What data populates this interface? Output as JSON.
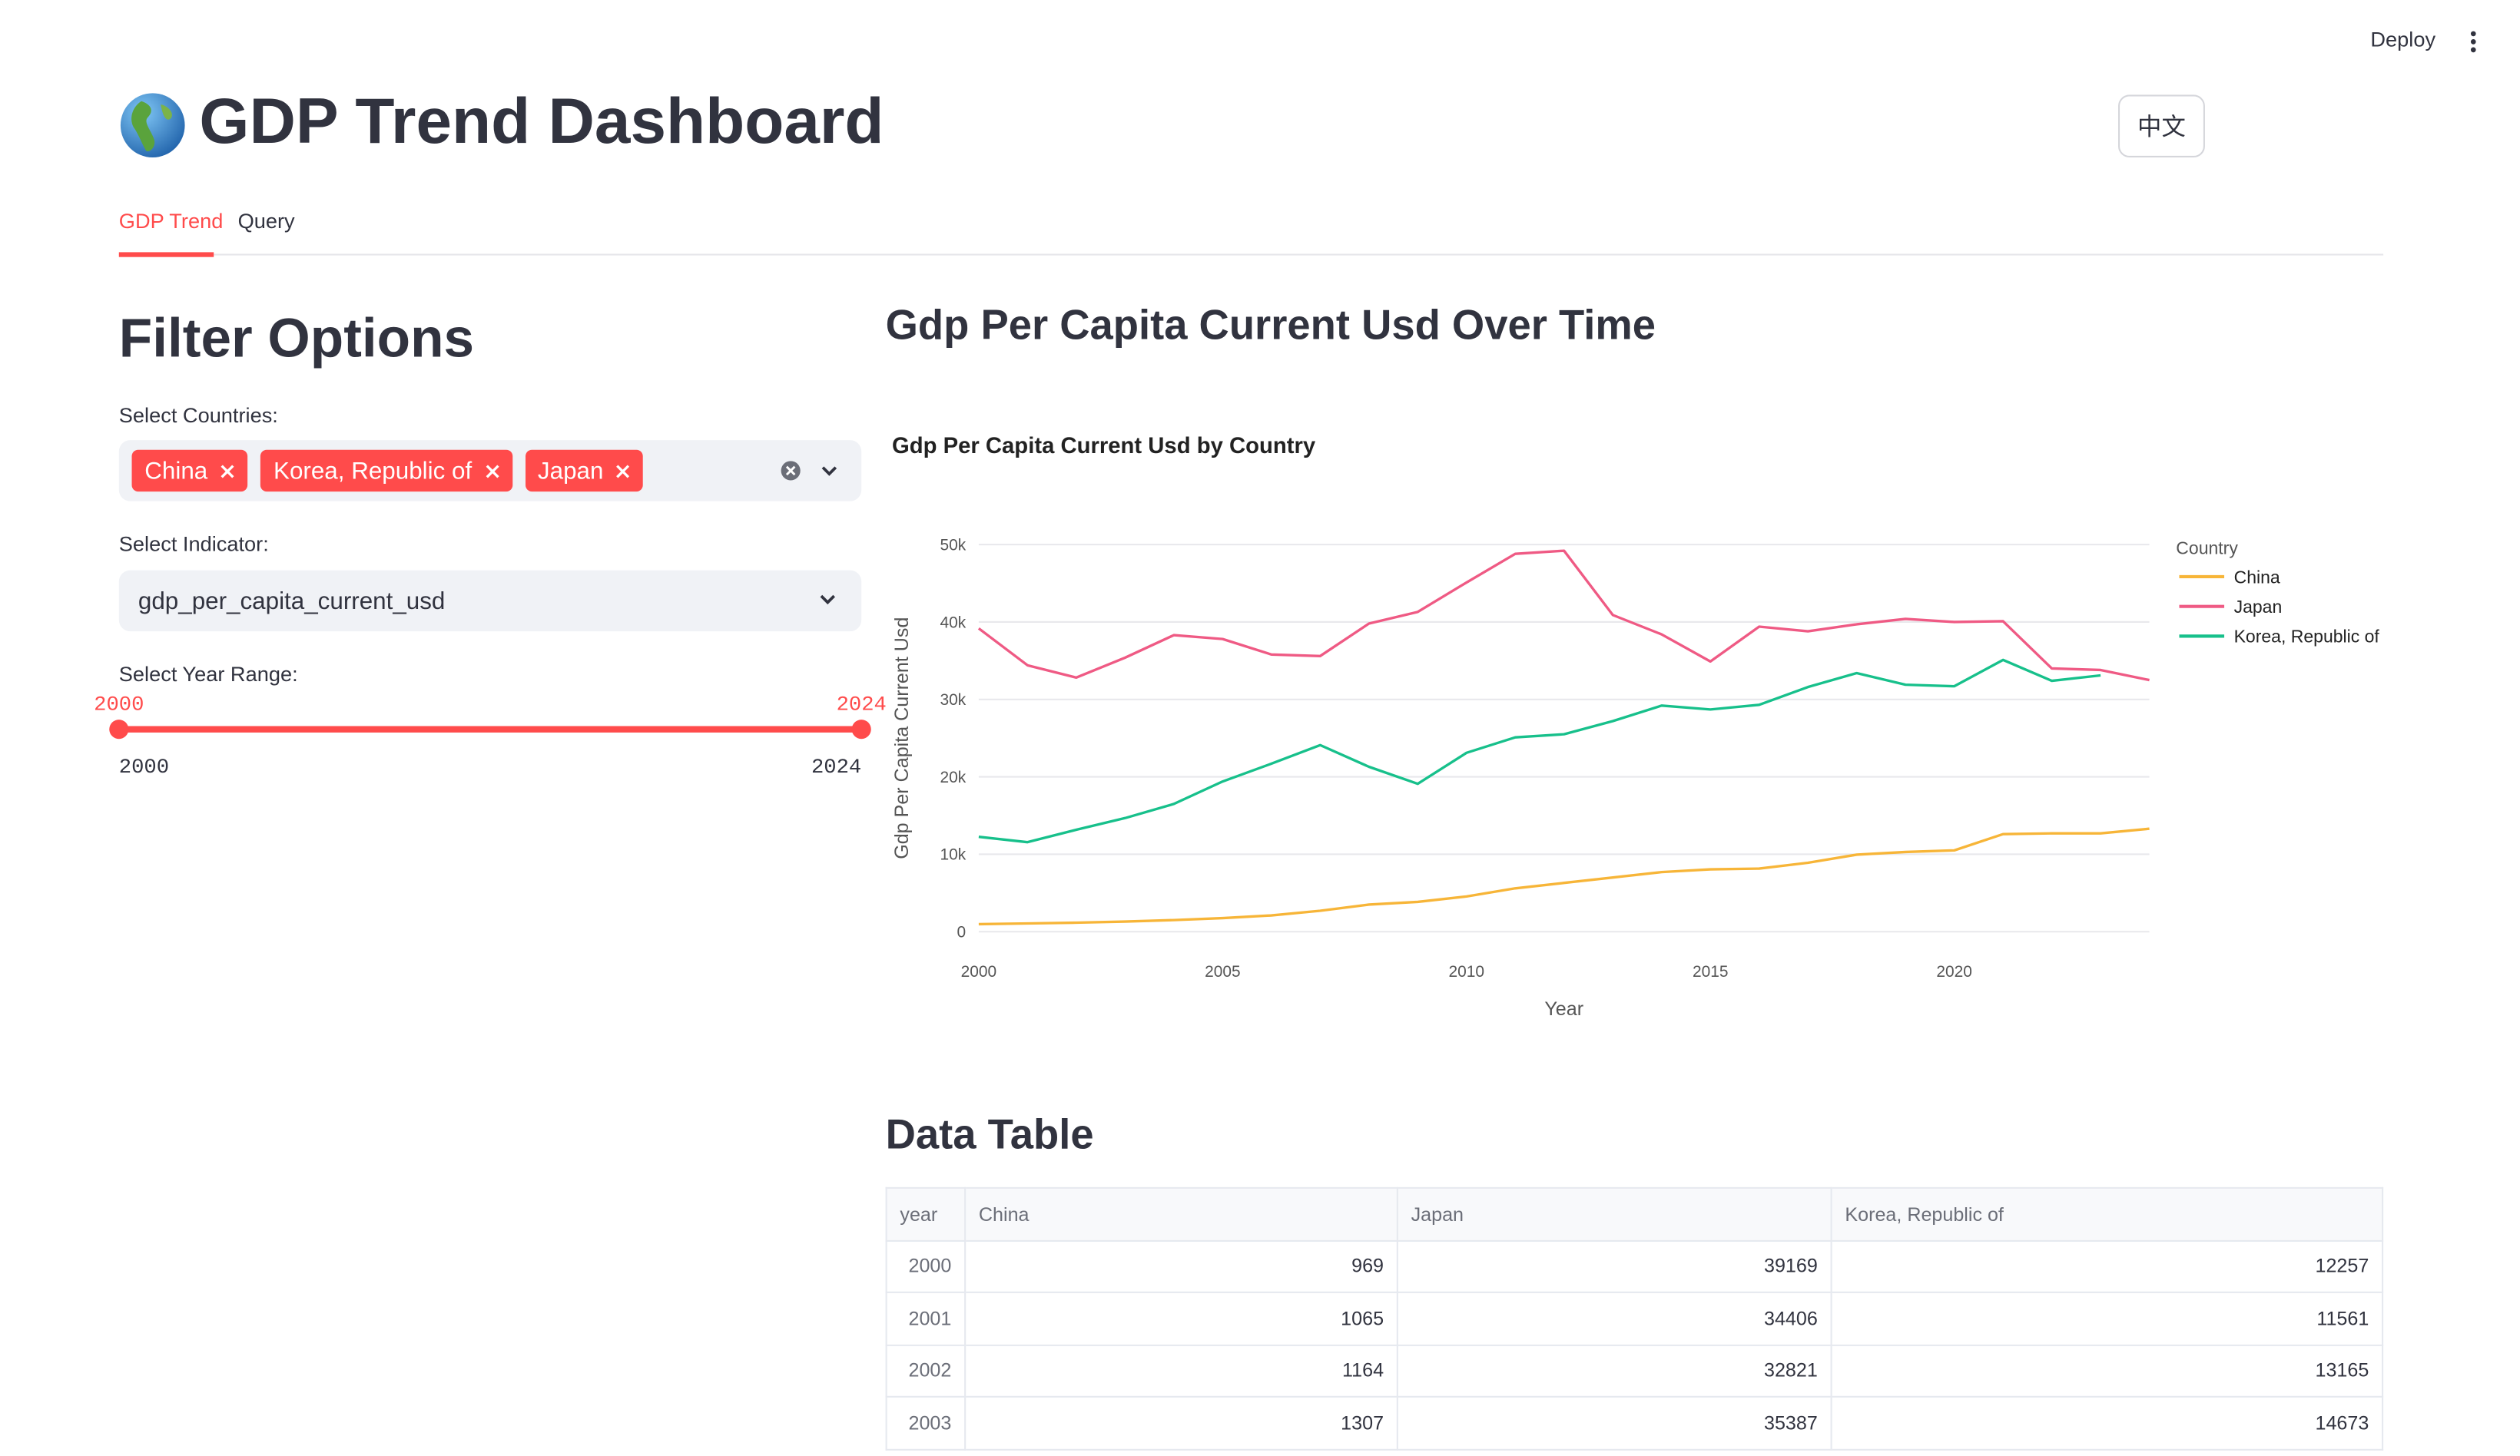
{
  "header": {
    "deploy": "Deploy",
    "title": "GDP Trend Dashboard",
    "language_button": "中文"
  },
  "tabs": [
    "GDP Trend",
    "Query"
  ],
  "filters": {
    "title": "Filter Options",
    "countries": {
      "label": "Select Countries:",
      "selected": [
        "China",
        "Korea, Republic of",
        "Japan"
      ]
    },
    "indicator": {
      "label": "Select Indicator:",
      "value": "gdp_per_capita_current_usd"
    },
    "year_range": {
      "label": "Select Year Range:",
      "value": [
        2000,
        2024
      ],
      "min": 2000,
      "max": 2024
    }
  },
  "chart_section_title": "Gdp Per Capita Current Usd Over Time",
  "chart_data": {
    "type": "line",
    "title": "Gdp Per Capita Current Usd by Country",
    "x_label": "Year",
    "y_label": "Gdp Per Capita Current Usd",
    "legend_title": "Country",
    "x": [
      2000,
      2001,
      2002,
      2003,
      2004,
      2005,
      2006,
      2007,
      2008,
      2009,
      2010,
      2011,
      2012,
      2013,
      2014,
      2015,
      2016,
      2017,
      2018,
      2019,
      2020,
      2021,
      2022,
      2023,
      2024
    ],
    "series": [
      {
        "name": "China",
        "color": "#f7b538",
        "values": [
          969,
          1065,
          1164,
          1307,
          1500,
          1750,
          2100,
          2700,
          3500,
          3850,
          4550,
          5600,
          6300,
          7000,
          7700,
          8050,
          8150,
          8900,
          9950,
          10300,
          10500,
          12600,
          12700,
          12700,
          13300
        ]
      },
      {
        "name": "Japan",
        "color": "#ef5a84",
        "values": [
          39169,
          34406,
          32821,
          35387,
          38300,
          37800,
          35800,
          35600,
          39800,
          41300,
          45100,
          48800,
          49200,
          40900,
          38400,
          34900,
          39400,
          38800,
          39700,
          40400,
          40000,
          40100,
          34000,
          33800,
          32500
        ]
      },
      {
        "name": "Korea, Republic of",
        "color": "#17c08b",
        "values": [
          12257,
          11561,
          13165,
          14673,
          16500,
          19400,
          21700,
          24100,
          21300,
          19100,
          23100,
          25100,
          25500,
          27200,
          29200,
          28700,
          29300,
          31600,
          33400,
          31900,
          31700,
          35100,
          32400,
          33100,
          null
        ]
      }
    ],
    "xlim": [
      2000,
      2024
    ],
    "xticks": [
      2000,
      2005,
      2010,
      2015,
      2020
    ],
    "ylim": [
      0,
      50000
    ],
    "yticks": [
      0,
      {
        "value": 10000,
        "label": "10k"
      },
      {
        "value": 20000,
        "label": "20k"
      },
      {
        "value": 30000,
        "label": "30k"
      },
      {
        "value": 40000,
        "label": "40k"
      },
      {
        "value": 50000,
        "label": "50k"
      }
    ],
    "grid": true,
    "legend": "right"
  },
  "table_title": "Data Table",
  "table": {
    "columns": [
      "year",
      "China",
      "Japan",
      "Korea, Republic of"
    ],
    "rows": [
      [
        2000,
        969,
        39169,
        12257
      ],
      [
        2001,
        1065,
        34406,
        11561
      ],
      [
        2002,
        1164,
        32821,
        13165
      ],
      [
        2003,
        1307,
        35387,
        14673
      ]
    ]
  }
}
